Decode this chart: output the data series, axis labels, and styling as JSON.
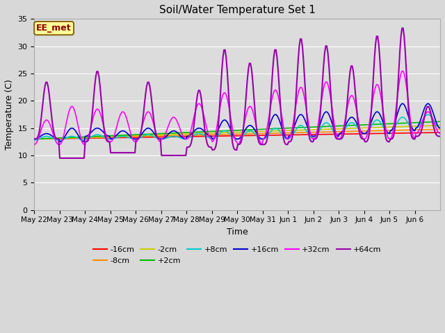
{
  "title": "Soil/Water Temperature Set 1",
  "xlabel": "Time",
  "ylabel": "Temperature (C)",
  "ylim": [
    0,
    35
  ],
  "yticks": [
    0,
    5,
    10,
    15,
    20,
    25,
    30,
    35
  ],
  "annotation_text": "EE_met",
  "annotation_bg": "#FFFF99",
  "annotation_border": "#8B6914",
  "series_colors": {
    "-16cm": "#FF0000",
    "-8cm": "#FF8C00",
    "-2cm": "#CCCC00",
    "+2cm": "#00BB00",
    "+8cm": "#00CCCC",
    "+16cm": "#0000CC",
    "+32cm": "#FF00FF",
    "+64cm": "#9900AA"
  },
  "plot_bg_dark": "#DCDCDC",
  "plot_bg_light": "#F0F0F0",
  "grid_color": "#FFFFFF",
  "x_tick_labels": [
    "May 22",
    "May 23",
    "May 24",
    "May 25",
    "May 26",
    "May 27",
    "May 28",
    "May 29",
    "May 30",
    "May 31",
    "Jun 1",
    "Jun 2",
    "Jun 3",
    "Jun 4",
    "Jun 5",
    "Jun 6"
  ],
  "n_days": 16,
  "p64_peaks": [
    23.5,
    9.5,
    25.5,
    10.5,
    23.5,
    10.0,
    22.0,
    29.5,
    27.0,
    29.5,
    31.5,
    30.2,
    26.5,
    32.0,
    33.5,
    19.0
  ],
  "p64_troughs": [
    13.0,
    9.5,
    12.5,
    10.5,
    13.0,
    10.0,
    11.5,
    11.0,
    12.0,
    12.0,
    12.5,
    13.0,
    13.0,
    12.5,
    13.0,
    13.5
  ],
  "p32_peaks": [
    16.5,
    19.0,
    18.5,
    18.0,
    18.0,
    17.0,
    19.5,
    21.5,
    19.0,
    22.0,
    22.5,
    23.5,
    21.0,
    23.0,
    25.5,
    18.0
  ],
  "p32_troughs": [
    12.0,
    12.0,
    12.5,
    12.5,
    12.5,
    13.0,
    13.0,
    12.5,
    12.0,
    13.0,
    13.0,
    13.0,
    13.0,
    13.0,
    13.0,
    14.0
  ],
  "p16_peaks": [
    14.0,
    15.0,
    15.0,
    14.5,
    15.0,
    14.5,
    15.0,
    16.5,
    15.5,
    17.5,
    17.5,
    18.0,
    17.0,
    18.0,
    19.5,
    19.5
  ],
  "p16_troughs": [
    13.0,
    12.5,
    13.5,
    13.0,
    13.0,
    13.0,
    13.5,
    13.0,
    13.0,
    13.0,
    13.5,
    13.5,
    14.0,
    14.0,
    14.5,
    15.0
  ],
  "p8_peaks": [
    13.5,
    13.5,
    13.8,
    13.5,
    13.8,
    13.5,
    14.0,
    14.5,
    14.5,
    15.0,
    15.5,
    16.0,
    16.0,
    16.5,
    17.0,
    17.5
  ],
  "p8_troughs": [
    12.8,
    12.8,
    13.0,
    13.0,
    13.0,
    13.0,
    13.2,
    13.0,
    13.0,
    13.0,
    13.2,
    13.5,
    14.0,
    14.0,
    14.5,
    15.0
  ]
}
